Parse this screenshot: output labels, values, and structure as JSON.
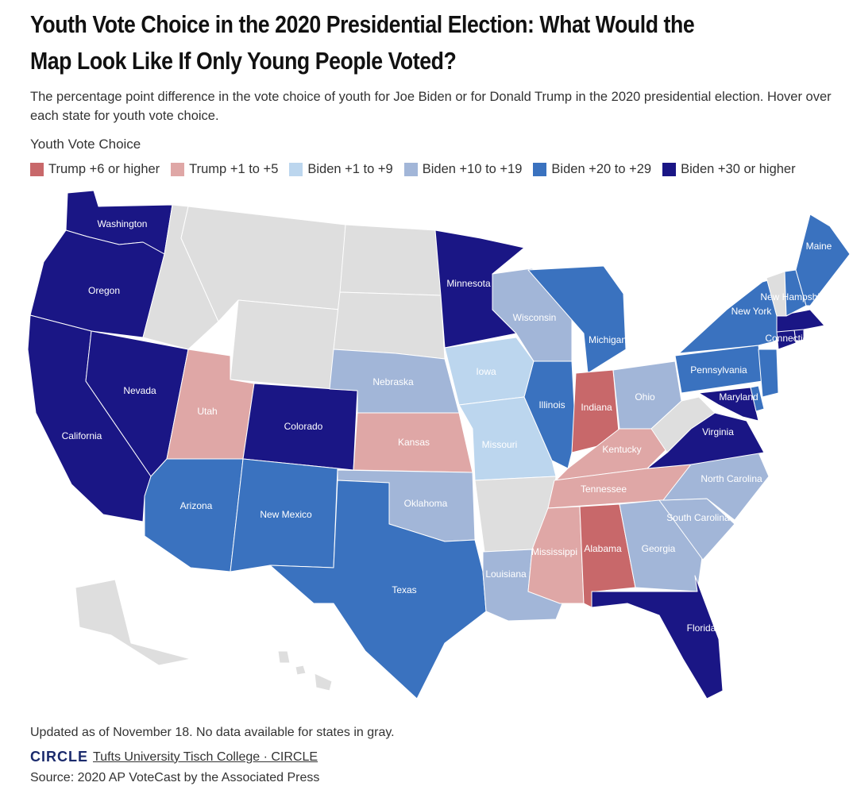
{
  "title": "Youth Vote Choice in the 2020 Presidential Election: What Would the Map Look Like If Only Young People Voted?",
  "subtitle": "The percentage point difference in the vote choice of youth for Joe Biden or for Donald Trump in the 2020 presidential election. Hover over each state for youth vote choice.",
  "legend": {
    "title": "Youth Vote Choice",
    "items": [
      {
        "label": "Trump +6 or higher",
        "color": "#c8686a"
      },
      {
        "label": "Trump +1 to +5",
        "color": "#dfa7a6"
      },
      {
        "label": "Biden +1 to +9",
        "color": "#bcd6ee"
      },
      {
        "label": "Biden +10 to +19",
        "color": "#a2b6d8"
      },
      {
        "label": "Biden +20 to +29",
        "color": "#3a72bf"
      },
      {
        "label": "Biden +30 or higher",
        "color": "#1a1685"
      }
    ]
  },
  "nodata_color": "#dedede",
  "states": {
    "washington": {
      "label": "Washington",
      "category": 5
    },
    "oregon": {
      "label": "Oregon",
      "category": 5
    },
    "california": {
      "label": "California",
      "category": 5
    },
    "nevada": {
      "label": "Nevada",
      "category": 5
    },
    "utah": {
      "label": "Utah",
      "category": 1
    },
    "arizona": {
      "label": "Arizona",
      "category": 4
    },
    "colorado": {
      "label": "Colorado",
      "category": 5
    },
    "new_mexico": {
      "label": "New Mexico",
      "category": 4
    },
    "texas": {
      "label": "Texas",
      "category": 4
    },
    "nebraska": {
      "label": "Nebraska",
      "category": 3
    },
    "kansas": {
      "label": "Kansas",
      "category": 1
    },
    "oklahoma": {
      "label": "Oklahoma",
      "category": 3
    },
    "minnesota": {
      "label": "Minnesota",
      "category": 5
    },
    "iowa": {
      "label": "Iowa",
      "category": 2
    },
    "missouri": {
      "label": "Missouri",
      "category": 2
    },
    "louisiana": {
      "label": "Louisiana",
      "category": 3
    },
    "wisconsin": {
      "label": "Wisconsin",
      "category": 3
    },
    "illinois": {
      "label": "Illinois",
      "category": 4
    },
    "michigan": {
      "label": "Michigan",
      "category": 4
    },
    "indiana": {
      "label": "Indiana",
      "category": 0
    },
    "ohio": {
      "label": "Ohio",
      "category": 3
    },
    "kentucky": {
      "label": "Kentucky",
      "category": 1
    },
    "tennessee": {
      "label": "Tennessee",
      "category": 1
    },
    "mississippi": {
      "label": "Mississippi",
      "category": 1
    },
    "alabama": {
      "label": "Alabama",
      "category": 0
    },
    "georgia": {
      "label": "Georgia",
      "category": 3
    },
    "florida": {
      "label": "Florida",
      "category": 5
    },
    "south_carolina": {
      "label": "South Carolina",
      "category": 3
    },
    "north_carolina": {
      "label": "North Carolina",
      "category": 3
    },
    "virginia": {
      "label": "Virginia",
      "category": 5
    },
    "maryland": {
      "label": "Maryland",
      "category": 5
    },
    "pennsylvania": {
      "label": "Pennsylvania",
      "category": 4
    },
    "new_york": {
      "label": "New York",
      "category": 4
    },
    "new_jersey": {
      "label": "",
      "category": 4
    },
    "delaware": {
      "label": "",
      "category": 4
    },
    "connecticut": {
      "label": "Connecticut",
      "category": 5
    },
    "massachusetts": {
      "label": "",
      "category": 5
    },
    "rhode_island": {
      "label": "",
      "category": 5
    },
    "new_hampshire": {
      "label": "New Hampshire",
      "category": 4
    },
    "maine": {
      "label": "Maine",
      "category": 4
    },
    "idaho": {
      "label": "",
      "category": -1
    },
    "montana": {
      "label": "",
      "category": -1
    },
    "wyoming": {
      "label": "",
      "category": -1
    },
    "north_dakota": {
      "label": "",
      "category": -1
    },
    "south_dakota": {
      "label": "",
      "category": -1
    },
    "arkansas": {
      "label": "",
      "category": -1
    },
    "west_virginia": {
      "label": "",
      "category": -1
    },
    "vermont": {
      "label": "",
      "category": -1
    },
    "alaska": {
      "label": "",
      "category": -1
    },
    "hawaii": {
      "label": "",
      "category": -1
    }
  },
  "footer": {
    "note": "Updated as of November 18. No data available for states in gray.",
    "logo": "CIRCLE",
    "credit": "Tufts University Tisch College · CIRCLE",
    "source": "Source: 2020 AP VoteCast by the Associated Press"
  }
}
